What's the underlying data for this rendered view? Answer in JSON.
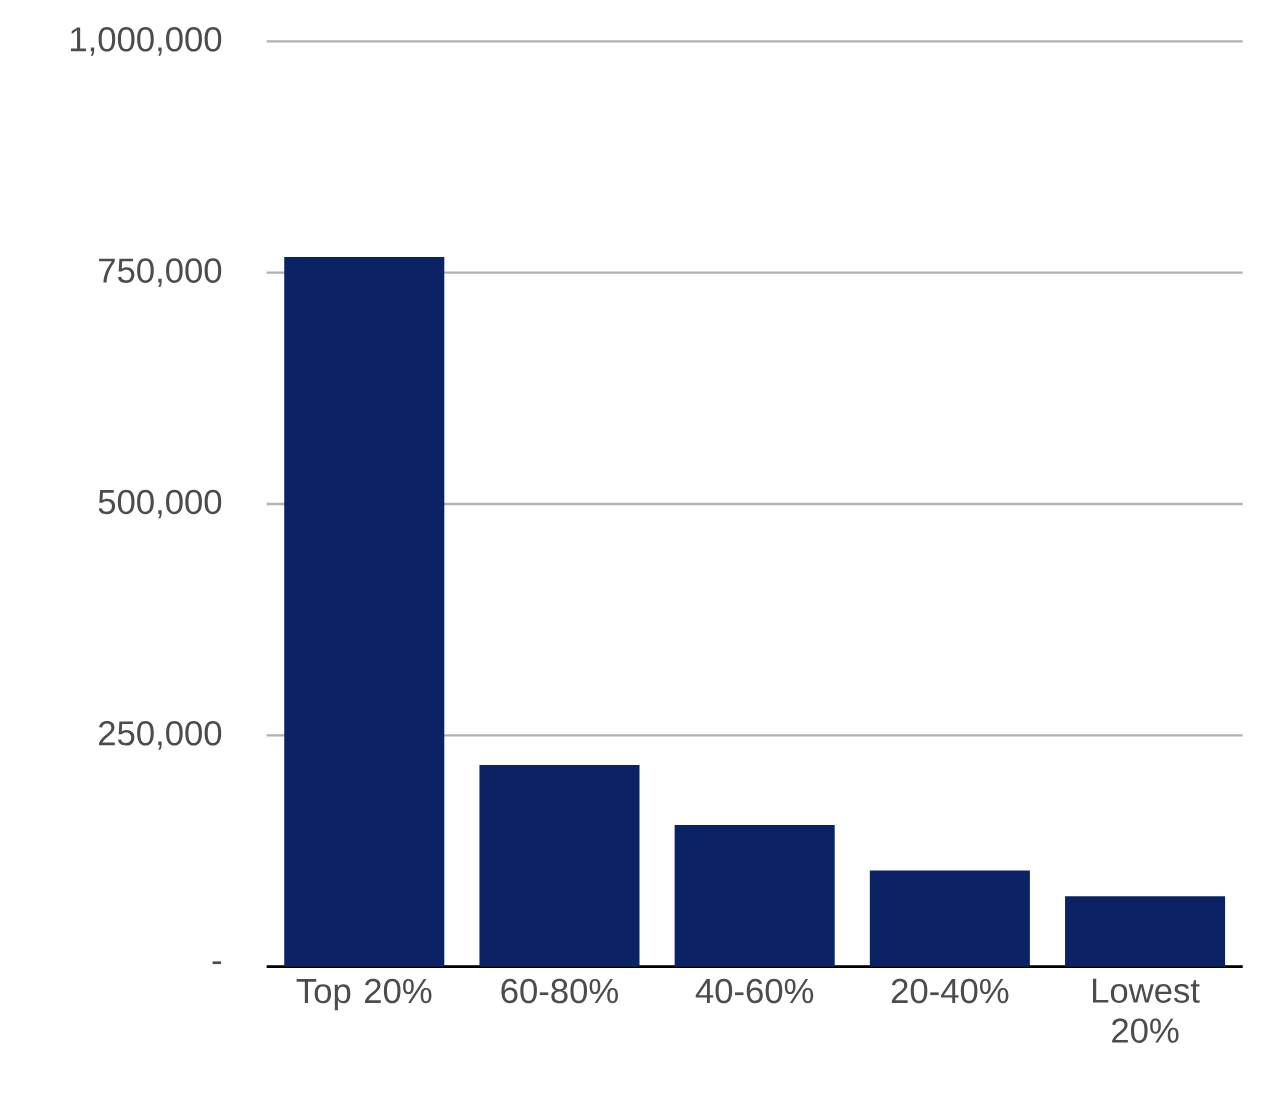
{
  "chart_data": {
    "type": "bar",
    "categories": [
      "Top 20%",
      "60-80%",
      "40-60%",
      "20-40%",
      "Lowest 20%"
    ],
    "values": [
      767000,
      218000,
      153000,
      104000,
      76000
    ],
    "color": "#0b2265",
    "ylim": [
      0,
      1000000
    ],
    "yticks": [
      {
        "value": 0,
        "label": "-"
      },
      {
        "value": 250000,
        "label": "250,000"
      },
      {
        "value": 500000,
        "label": "500,000"
      },
      {
        "value": 750000,
        "label": "750,000"
      },
      {
        "value": 1000000,
        "label": "1,000,000"
      }
    ],
    "grid": "y"
  }
}
